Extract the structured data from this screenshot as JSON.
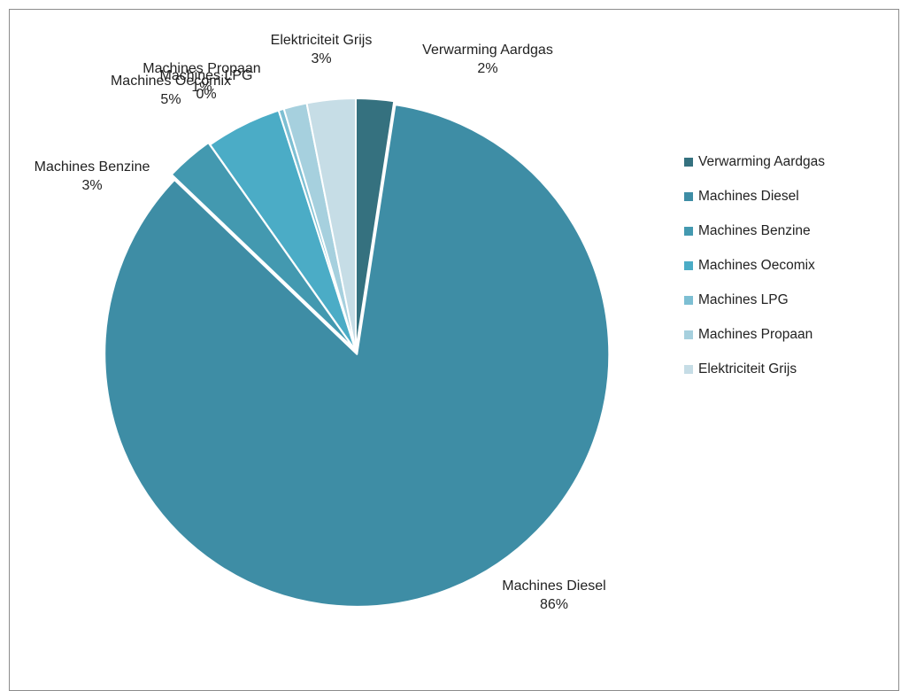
{
  "chart_data": {
    "type": "pie",
    "legend_position": "right",
    "slices": [
      {
        "name": "Verwarming Aardgas",
        "value": 2,
        "label_pct": "2%",
        "color": "#35717f"
      },
      {
        "name": "Machines Diesel",
        "value": 86,
        "label_pct": "86%",
        "color": "#3e8da5"
      },
      {
        "name": "Machines Benzine",
        "value": 3,
        "label_pct": "3%",
        "color": "#4399b0"
      },
      {
        "name": "Machines Oecomix",
        "value": 5,
        "label_pct": "5%",
        "color": "#4bacc6"
      },
      {
        "name": "Machines LPG",
        "value": 0,
        "label_pct": "0%",
        "color": "#7dbfd3"
      },
      {
        "name": "Machines Propaan",
        "value": 1,
        "label_pct": "1%",
        "color": "#a6d0de"
      },
      {
        "name": "Elektriciteit Grijs",
        "value": 3,
        "label_pct": "3%",
        "color": "#c6dde6"
      }
    ]
  }
}
